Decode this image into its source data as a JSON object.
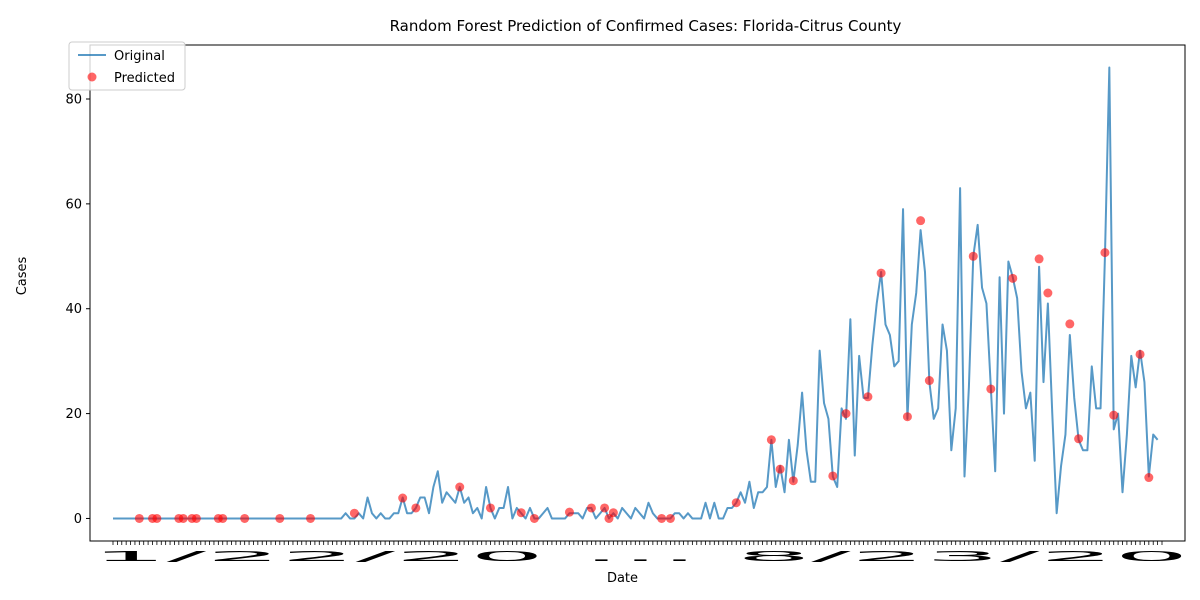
{
  "chart_data": {
    "type": "line",
    "title": "Random Forest Prediction of Confirmed Cases: Florida-Citrus County",
    "xlabel": "Date",
    "ylabel": "Cases",
    "ylim": [
      -4.3,
      90.3
    ],
    "y_ticks": [
      0,
      20,
      40,
      60,
      80
    ],
    "x_tick_labels_overlapping": "1/22/20 … 8/23/20",
    "x_tick_label_start": "1/22/20",
    "x_tick_label_end": "8/23/20",
    "legend": {
      "position": "top-left",
      "entries": [
        "Original",
        "Predicted"
      ]
    },
    "colors": {
      "original": "#1f77b4",
      "predicted": "#ff0000"
    },
    "series": [
      {
        "name": "Original",
        "style": "line",
        "values": [
          0,
          0,
          0,
          0,
          0,
          0,
          0,
          0,
          0,
          0,
          0,
          0,
          0,
          0,
          0,
          0,
          0,
          0,
          0,
          0,
          0,
          0,
          0,
          0,
          0,
          0,
          0,
          0,
          0,
          0,
          0,
          0,
          0,
          0,
          0,
          0,
          0,
          0,
          0,
          0,
          0,
          0,
          0,
          0,
          0,
          0,
          0,
          0,
          0,
          0,
          0,
          0,
          0,
          1,
          0,
          0,
          1,
          0,
          4,
          1,
          0,
          1,
          0,
          0,
          1,
          1,
          4,
          1,
          1,
          2,
          4,
          4,
          1,
          6,
          9,
          3,
          5,
          4,
          3,
          6,
          3,
          4,
          1,
          2,
          0,
          6,
          2,
          0,
          2,
          2,
          6,
          0,
          2,
          1,
          0,
          2,
          0,
          0,
          1,
          2,
          0,
          0,
          0,
          0,
          1,
          1,
          1,
          0,
          2,
          2,
          0,
          1,
          2,
          0,
          1,
          0,
          2,
          1,
          0,
          2,
          1,
          0,
          3,
          1,
          0,
          0,
          0,
          0,
          1,
          1,
          0,
          1,
          0,
          0,
          0,
          3,
          0,
          3,
          0,
          0,
          2,
          2,
          3,
          5,
          3,
          7,
          2,
          5,
          5,
          6,
          15,
          6,
          10,
          5,
          15,
          7,
          14,
          24,
          13,
          7,
          7,
          32,
          22,
          19,
          8,
          6,
          21,
          19,
          38,
          12,
          31,
          23,
          23,
          33,
          41,
          47,
          37,
          35,
          29,
          30,
          59,
          19,
          37,
          43,
          55,
          47,
          26,
          19,
          21,
          37,
          32,
          13,
          21,
          63,
          8,
          25,
          50,
          56,
          44,
          41,
          25,
          9,
          46,
          20,
          49,
          46,
          42,
          28,
          21,
          24,
          11,
          48,
          26,
          41,
          20,
          1,
          10,
          16,
          35,
          23,
          15,
          13,
          13,
          29,
          21,
          21,
          50,
          86,
          17,
          20,
          5,
          16,
          31,
          25,
          32,
          26,
          8,
          16,
          15
        ]
      },
      {
        "name": "Predicted",
        "style": "scatter",
        "points": [
          [
            6,
            0
          ],
          [
            9,
            0
          ],
          [
            10,
            0
          ],
          [
            15,
            0
          ],
          [
            16,
            0
          ],
          [
            18,
            0
          ],
          [
            19,
            0
          ],
          [
            24,
            0
          ],
          [
            25,
            0
          ],
          [
            30,
            0
          ],
          [
            38,
            0
          ],
          [
            45,
            0
          ],
          [
            55,
            1
          ],
          [
            66,
            3.9
          ],
          [
            69,
            2
          ],
          [
            79,
            6
          ],
          [
            86,
            2
          ],
          [
            93,
            1.1
          ],
          [
            96,
            0
          ],
          [
            104,
            1.2
          ],
          [
            109,
            2
          ],
          [
            112,
            2
          ],
          [
            113,
            0
          ],
          [
            114,
            1.1
          ],
          [
            125,
            0
          ],
          [
            127,
            0
          ],
          [
            142,
            3
          ],
          [
            150,
            15
          ],
          [
            152,
            9.4
          ],
          [
            155,
            7.2
          ],
          [
            164,
            8.1
          ],
          [
            167,
            20
          ],
          [
            172,
            23.2
          ],
          [
            175,
            46.8
          ],
          [
            181,
            19.4
          ],
          [
            184,
            56.8
          ],
          [
            186,
            26.3
          ],
          [
            196,
            50
          ],
          [
            200,
            24.7
          ],
          [
            205,
            45.8
          ],
          [
            211,
            49.5
          ],
          [
            213,
            43
          ],
          [
            218,
            37.1
          ],
          [
            220,
            15.2
          ],
          [
            226,
            50.7
          ],
          [
            228,
            19.7
          ],
          [
            234,
            31.3
          ],
          [
            236,
            7.8
          ]
        ]
      }
    ],
    "x_count": 240
  }
}
